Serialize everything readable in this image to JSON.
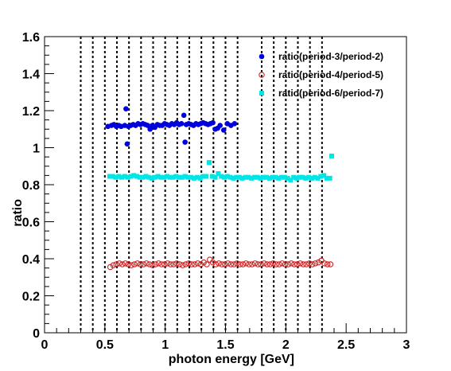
{
  "chart_data": {
    "type": "scatter",
    "xlabel": "photon energy [GeV]",
    "ylabel": "ratio",
    "xlim": [
      0,
      3
    ],
    "ylim": [
      0,
      1.6
    ],
    "x_ticks": [
      "0",
      "0.5",
      "1",
      "1.5",
      "2",
      "2.5",
      "3"
    ],
    "y_ticks": [
      "0",
      "0.2",
      "0.4",
      "0.6",
      "0.8",
      "1",
      "1.2",
      "1.4",
      "1.6"
    ],
    "grid": false,
    "legend_position": "top-right",
    "vertical_dashed_lines_x": [
      0.3,
      0.4,
      0.5,
      0.6,
      0.7,
      0.8,
      0.9,
      1.0,
      1.1,
      1.2,
      1.3,
      1.4,
      1.5,
      1.6,
      1.8,
      1.9,
      2.0,
      2.1,
      2.2,
      2.3
    ],
    "series": [
      {
        "name": "ratio(period-3/period-2)",
        "marker": "filled-circle",
        "color": "#0000dd",
        "x": [
          0.525,
          0.555,
          0.575,
          0.595,
          0.615,
          0.635,
          0.665,
          0.675,
          0.685,
          0.695,
          0.715,
          0.735,
          0.755,
          0.775,
          0.795,
          0.815,
          0.835,
          0.855,
          0.875,
          0.895,
          0.915,
          0.935,
          0.955,
          0.975,
          0.995,
          1.015,
          1.035,
          1.055,
          1.075,
          1.095,
          1.115,
          1.135,
          1.155,
          1.165,
          1.175,
          1.195,
          1.215,
          1.235,
          1.255,
          1.275,
          1.295,
          1.315,
          1.335,
          1.355,
          1.375,
          1.395,
          1.415,
          1.435,
          1.455,
          1.485,
          1.515,
          1.545,
          1.575
        ],
        "y": [
          1.115,
          1.12,
          1.125,
          1.115,
          1.12,
          1.115,
          1.12,
          1.21,
          1.02,
          1.115,
          1.12,
          1.125,
          1.12,
          1.13,
          1.125,
          1.13,
          1.125,
          1.12,
          1.1,
          1.12,
          1.11,
          1.125,
          1.12,
          1.12,
          1.13,
          1.125,
          1.12,
          1.13,
          1.125,
          1.135,
          1.125,
          1.13,
          1.175,
          1.03,
          1.125,
          1.13,
          1.125,
          1.12,
          1.13,
          1.125,
          1.13,
          1.135,
          1.13,
          1.125,
          1.13,
          1.135,
          1.1,
          1.105,
          1.12,
          1.095,
          1.13,
          1.12,
          1.13
        ]
      },
      {
        "name": "ratio(period-4/period-5)",
        "marker": "open-circle",
        "color": "#cc2222",
        "x": [
          0.545,
          0.57,
          0.595,
          0.62,
          0.645,
          0.67,
          0.695,
          0.72,
          0.745,
          0.77,
          0.795,
          0.82,
          0.845,
          0.87,
          0.895,
          0.92,
          0.945,
          0.97,
          0.995,
          1.02,
          1.045,
          1.07,
          1.095,
          1.12,
          1.145,
          1.17,
          1.195,
          1.22,
          1.245,
          1.27,
          1.295,
          1.32,
          1.345,
          1.37,
          1.395,
          1.42,
          1.445,
          1.47,
          1.495,
          1.52,
          1.545,
          1.57,
          1.595,
          1.62,
          1.645,
          1.67,
          1.695,
          1.72,
          1.745,
          1.77,
          1.795,
          1.82,
          1.845,
          1.87,
          1.895,
          1.92,
          1.945,
          1.97,
          1.995,
          2.02,
          2.045,
          2.07,
          2.095,
          2.12,
          2.145,
          2.17,
          2.195,
          2.22,
          2.245,
          2.27,
          2.295,
          2.32,
          2.345,
          2.37
        ],
        "y": [
          0.355,
          0.365,
          0.37,
          0.375,
          0.37,
          0.375,
          0.37,
          0.365,
          0.37,
          0.375,
          0.37,
          0.37,
          0.375,
          0.37,
          0.365,
          0.37,
          0.375,
          0.37,
          0.37,
          0.375,
          0.37,
          0.37,
          0.375,
          0.37,
          0.365,
          0.37,
          0.375,
          0.37,
          0.37,
          0.375,
          0.37,
          0.38,
          0.37,
          0.395,
          0.38,
          0.37,
          0.375,
          0.37,
          0.37,
          0.375,
          0.37,
          0.37,
          0.375,
          0.37,
          0.37,
          0.375,
          0.37,
          0.37,
          0.375,
          0.37,
          0.37,
          0.375,
          0.37,
          0.37,
          0.375,
          0.37,
          0.37,
          0.375,
          0.37,
          0.37,
          0.375,
          0.37,
          0.37,
          0.375,
          0.37,
          0.37,
          0.375,
          0.37,
          0.375,
          0.38,
          0.39,
          0.375,
          0.37,
          0.37
        ]
      },
      {
        "name": "ratio(period-6/period-7)",
        "marker": "filled-square",
        "color": "#00e6e6",
        "x": [
          0.54,
          0.565,
          0.59,
          0.615,
          0.64,
          0.665,
          0.69,
          0.715,
          0.74,
          0.765,
          0.79,
          0.815,
          0.84,
          0.865,
          0.89,
          0.915,
          0.94,
          0.965,
          0.99,
          1.015,
          1.04,
          1.065,
          1.09,
          1.115,
          1.14,
          1.165,
          1.19,
          1.215,
          1.24,
          1.265,
          1.29,
          1.315,
          1.34,
          1.365,
          1.39,
          1.415,
          1.44,
          1.465,
          1.49,
          1.515,
          1.54,
          1.565,
          1.59,
          1.615,
          1.64,
          1.665,
          1.69,
          1.715,
          1.74,
          1.765,
          1.79,
          1.815,
          1.84,
          1.865,
          1.89,
          1.915,
          1.94,
          1.965,
          1.99,
          2.015,
          2.04,
          2.065,
          2.09,
          2.115,
          2.14,
          2.165,
          2.19,
          2.215,
          2.24,
          2.265,
          2.29,
          2.315,
          2.34,
          2.365,
          2.38
        ],
        "y": [
          0.845,
          0.845,
          0.84,
          0.845,
          0.84,
          0.845,
          0.84,
          0.845,
          0.85,
          0.845,
          0.84,
          0.84,
          0.845,
          0.84,
          0.835,
          0.84,
          0.845,
          0.84,
          0.84,
          0.845,
          0.84,
          0.84,
          0.845,
          0.84,
          0.84,
          0.845,
          0.84,
          0.84,
          0.835,
          0.84,
          0.835,
          0.845,
          0.845,
          0.92,
          0.845,
          0.84,
          0.86,
          0.845,
          0.84,
          0.845,
          0.84,
          0.835,
          0.84,
          0.84,
          0.835,
          0.84,
          0.84,
          0.835,
          0.84,
          0.84,
          0.835,
          0.84,
          0.84,
          0.835,
          0.84,
          0.84,
          0.835,
          0.84,
          0.84,
          0.835,
          0.825,
          0.84,
          0.835,
          0.84,
          0.84,
          0.835,
          0.84,
          0.835,
          0.84,
          0.835,
          0.845,
          0.85,
          0.835,
          0.835,
          0.955
        ]
      }
    ]
  }
}
